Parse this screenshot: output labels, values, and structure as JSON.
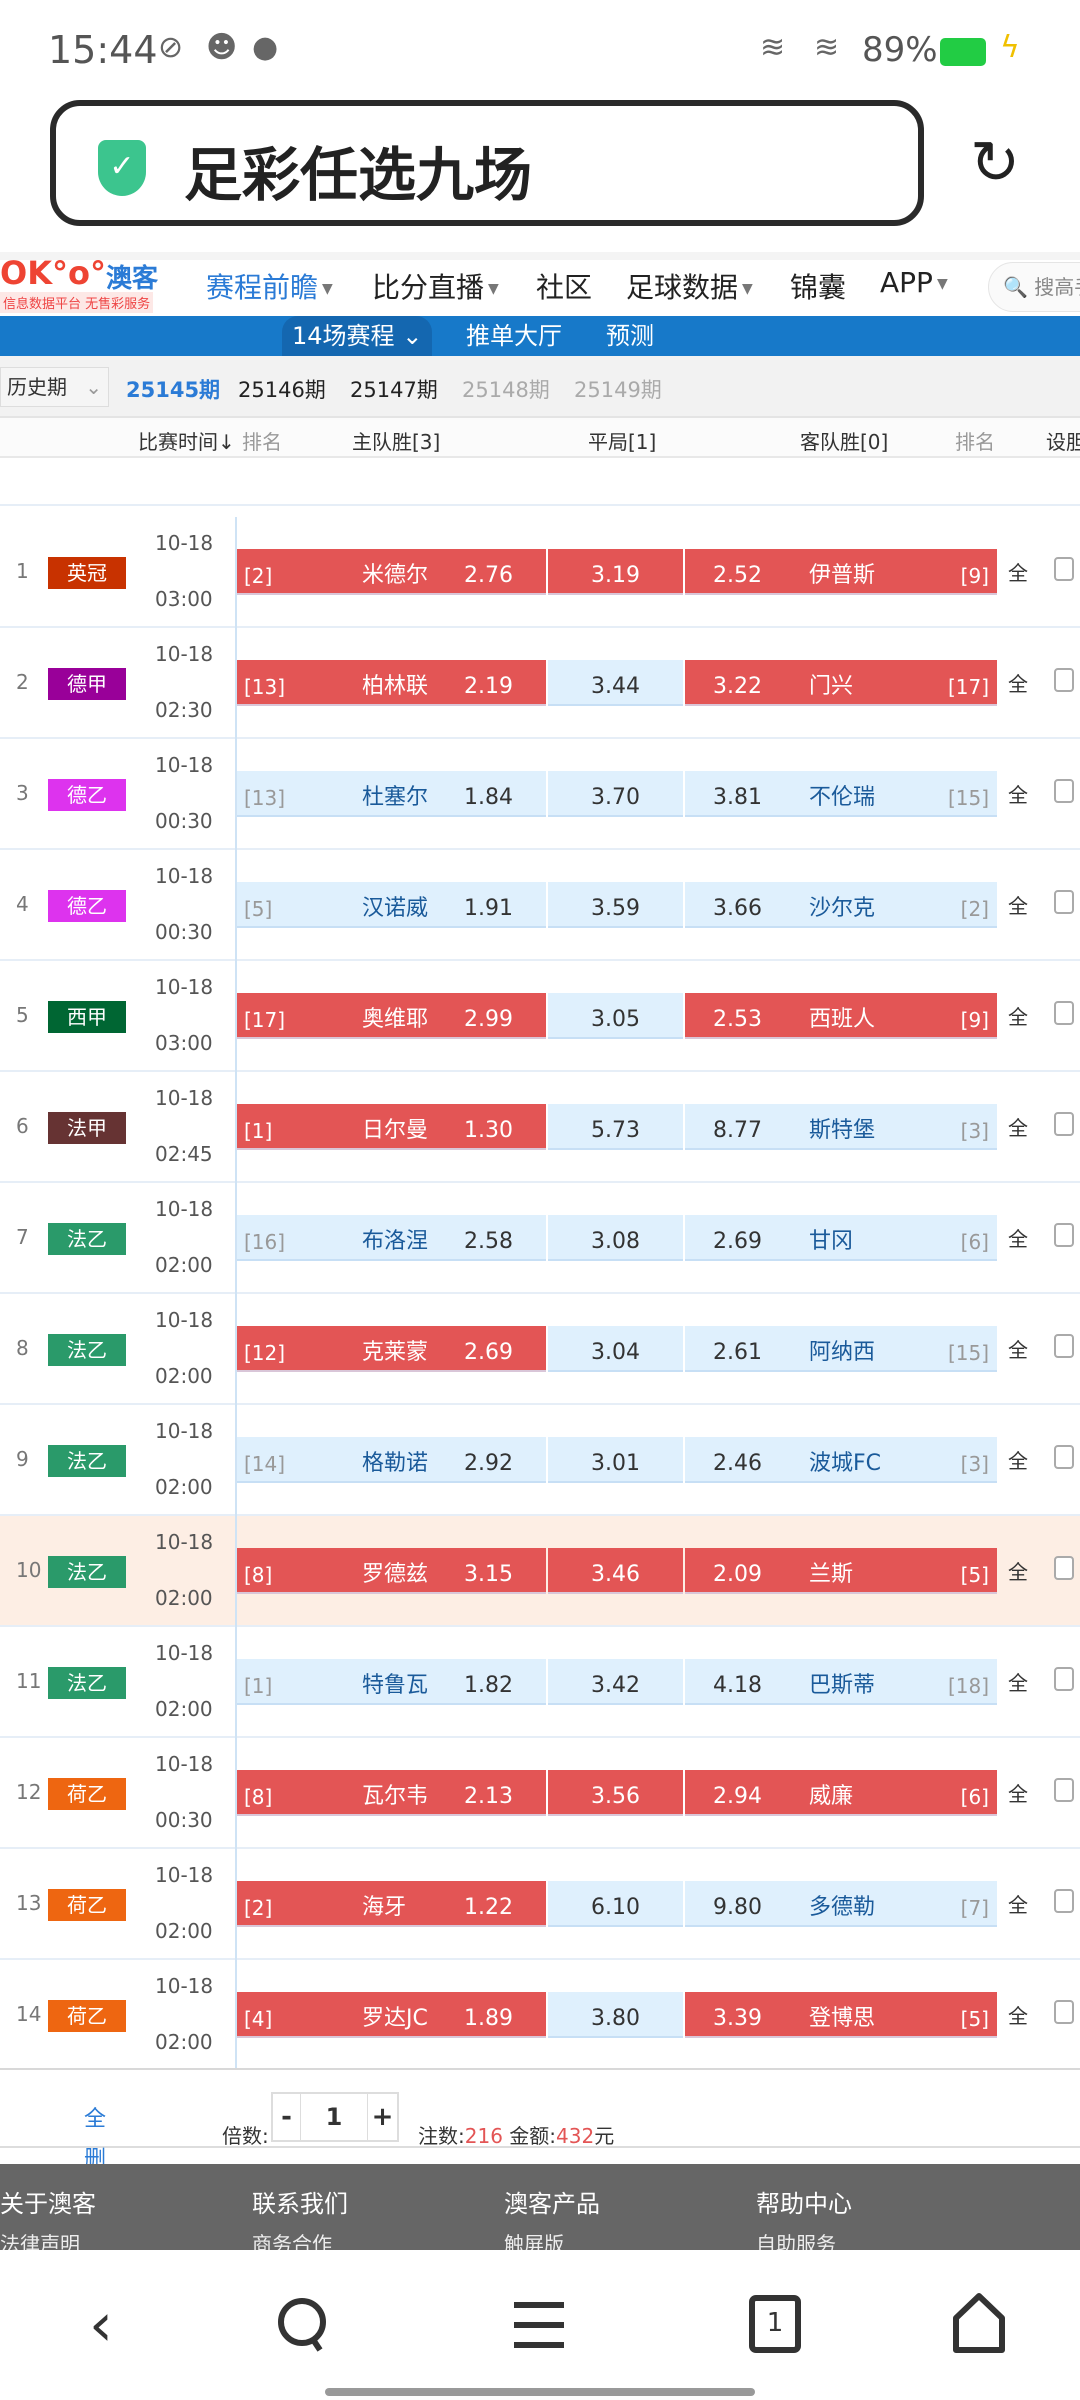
{
  "status_bar": {
    "time": "15:44",
    "battery": "89%",
    "battery_color": "#22cc44"
  },
  "browser": {
    "title": "足彩任选九场",
    "security_icon": "shield-check-icon",
    "reload_icon": "reload-icon"
  },
  "site_nav": {
    "logo_sub": "信息数据平台 无售彩服务",
    "logo_text": "澳客",
    "items": [
      {
        "label": "赛程前瞻",
        "active": true,
        "caret": true
      },
      {
        "label": "比分直播",
        "caret": true
      },
      {
        "label": "社区"
      },
      {
        "label": "足球数据",
        "caret": true
      },
      {
        "label": "锦囊"
      },
      {
        "label": "APP",
        "caret": true
      }
    ],
    "search_placeholder": "搜高手"
  },
  "sub_nav": {
    "items": [
      "14场赛程",
      "推单大厅",
      "预测"
    ]
  },
  "periods": {
    "history_label": "历史期",
    "items": [
      {
        "label": "25145期",
        "state": "current"
      },
      {
        "label": "25146期",
        "state": "open"
      },
      {
        "label": "25147期",
        "state": "open"
      },
      {
        "label": "25148期",
        "state": "disabled"
      },
      {
        "label": "25149期",
        "state": "disabled"
      }
    ]
  },
  "table_header": {
    "time": "比赛时间↓",
    "rank1": "排名",
    "home": "主队胜[3]",
    "draw": "平局[1]",
    "away": "客队胜[0]",
    "rank2": "排名",
    "banker": "设胆"
  },
  "colors": {
    "selected_cell": "#e35555",
    "unselected_cell": "#dff0fd",
    "accent": "#1779c9"
  },
  "all_label": "全",
  "matches": [
    {
      "no": "1",
      "league": "英冠",
      "league_color": "#c83200",
      "date": "10-18",
      "time": "03:00",
      "home_rank": "[2]",
      "home": "米德尔",
      "home_odds": "2.76",
      "draw_odds": "3.19",
      "away_odds": "2.52",
      "away": "伊普斯",
      "away_rank": "[9]",
      "sel": [
        true,
        true,
        true
      ]
    },
    {
      "no": "2",
      "league": "德甲",
      "league_color": "#990099",
      "date": "10-18",
      "time": "02:30",
      "home_rank": "[13]",
      "home": "柏林联",
      "home_odds": "2.19",
      "draw_odds": "3.44",
      "away_odds": "3.22",
      "away": "门兴",
      "away_rank": "[17]",
      "sel": [
        true,
        false,
        true
      ]
    },
    {
      "no": "3",
      "league": "德乙",
      "league_color": "#dd33ee",
      "date": "10-18",
      "time": "00:30",
      "home_rank": "[13]",
      "home": "杜塞尔",
      "home_odds": "1.84",
      "draw_odds": "3.70",
      "away_odds": "3.81",
      "away": "不伦瑞",
      "away_rank": "[15]",
      "sel": [
        false,
        false,
        false
      ]
    },
    {
      "no": "4",
      "league": "德乙",
      "league_color": "#dd33ee",
      "date": "10-18",
      "time": "00:30",
      "home_rank": "[5]",
      "home": "汉诺威",
      "home_odds": "1.91",
      "draw_odds": "3.59",
      "away_odds": "3.66",
      "away": "沙尔克",
      "away_rank": "[2]",
      "sel": [
        false,
        false,
        false
      ]
    },
    {
      "no": "5",
      "league": "西甲",
      "league_color": "#006633",
      "date": "10-18",
      "time": "03:00",
      "home_rank": "[17]",
      "home": "奥维耶",
      "home_odds": "2.99",
      "draw_odds": "3.05",
      "away_odds": "2.53",
      "away": "西班人",
      "away_rank": "[9]",
      "sel": [
        true,
        false,
        true
      ]
    },
    {
      "no": "6",
      "league": "法甲",
      "league_color": "#663333",
      "date": "10-18",
      "time": "02:45",
      "home_rank": "[1]",
      "home": "日尔曼",
      "home_odds": "1.30",
      "draw_odds": "5.73",
      "away_odds": "8.77",
      "away": "斯特堡",
      "away_rank": "[3]",
      "sel": [
        true,
        false,
        false
      ]
    },
    {
      "no": "7",
      "league": "法乙",
      "league_color": "#2a9a6a",
      "date": "10-18",
      "time": "02:00",
      "home_rank": "[16]",
      "home": "布洛涅",
      "home_odds": "2.58",
      "draw_odds": "3.08",
      "away_odds": "2.69",
      "away": "甘冈",
      "away_rank": "[6]",
      "sel": [
        false,
        false,
        false
      ]
    },
    {
      "no": "8",
      "league": "法乙",
      "league_color": "#2a9a6a",
      "date": "10-18",
      "time": "02:00",
      "home_rank": "[12]",
      "home": "克莱蒙",
      "home_odds": "2.69",
      "draw_odds": "3.04",
      "away_odds": "2.61",
      "away": "阿纳西",
      "away_rank": "[15]",
      "sel": [
        true,
        false,
        false
      ]
    },
    {
      "no": "9",
      "league": "法乙",
      "league_color": "#2a9a6a",
      "date": "10-18",
      "time": "02:00",
      "home_rank": "[14]",
      "home": "格勒诺",
      "home_odds": "2.92",
      "draw_odds": "3.01",
      "away_odds": "2.46",
      "away": "波城FC",
      "away_rank": "[3]",
      "sel": [
        false,
        false,
        false
      ]
    },
    {
      "no": "10",
      "league": "法乙",
      "league_color": "#2a9a6a",
      "date": "10-18",
      "time": "02:00",
      "home_rank": "[8]",
      "home": "罗德兹",
      "home_odds": "3.15",
      "draw_odds": "3.46",
      "away_odds": "2.09",
      "away": "兰斯",
      "away_rank": "[5]",
      "sel": [
        true,
        true,
        true
      ],
      "highlight": true
    },
    {
      "no": "11",
      "league": "法乙",
      "league_color": "#2a9a6a",
      "date": "10-18",
      "time": "02:00",
      "home_rank": "[1]",
      "home": "特鲁瓦",
      "home_odds": "1.82",
      "draw_odds": "3.42",
      "away_odds": "4.18",
      "away": "巴斯蒂",
      "away_rank": "[18]",
      "sel": [
        false,
        false,
        false
      ]
    },
    {
      "no": "12",
      "league": "荷乙",
      "league_color": "#ee6611",
      "date": "10-18",
      "time": "00:30",
      "home_rank": "[8]",
      "home": "瓦尔韦",
      "home_odds": "2.13",
      "draw_odds": "3.56",
      "away_odds": "2.94",
      "away": "威廉",
      "away_rank": "[6]",
      "sel": [
        true,
        true,
        true
      ]
    },
    {
      "no": "13",
      "league": "荷乙",
      "league_color": "#ee6611",
      "date": "10-18",
      "time": "02:00",
      "home_rank": "[2]",
      "home": "海牙",
      "home_odds": "1.22",
      "draw_odds": "6.10",
      "away_odds": "9.80",
      "away": "多德勒",
      "away_rank": "[7]",
      "sel": [
        true,
        false,
        false
      ]
    },
    {
      "no": "14",
      "league": "荷乙",
      "league_color": "#ee6611",
      "date": "10-18",
      "time": "02:00",
      "home_rank": "[4]",
      "home": "罗达JC",
      "home_odds": "1.89",
      "draw_odds": "3.80",
      "away_odds": "3.39",
      "away": "登博思",
      "away_rank": "[5]",
      "sel": [
        true,
        false,
        true
      ]
    }
  ],
  "bottom": {
    "clear_all": "全删",
    "multiplier_label": "倍数:",
    "minus": "-",
    "multiplier": "1",
    "plus": "+",
    "notes_label": "注数:",
    "notes": "216",
    "amount_label": "金额:",
    "amount": "432",
    "unit": "元"
  },
  "footer": {
    "cols": [
      {
        "head": "关于澳客",
        "sub": "法律声明"
      },
      {
        "head": "联系我们",
        "sub": "商务合作"
      },
      {
        "head": "澳客产品",
        "sub": "触屏版"
      },
      {
        "head": "帮助中心",
        "sub": "自助服务"
      }
    ]
  },
  "nav_bar": {
    "tabs_count": "1"
  }
}
